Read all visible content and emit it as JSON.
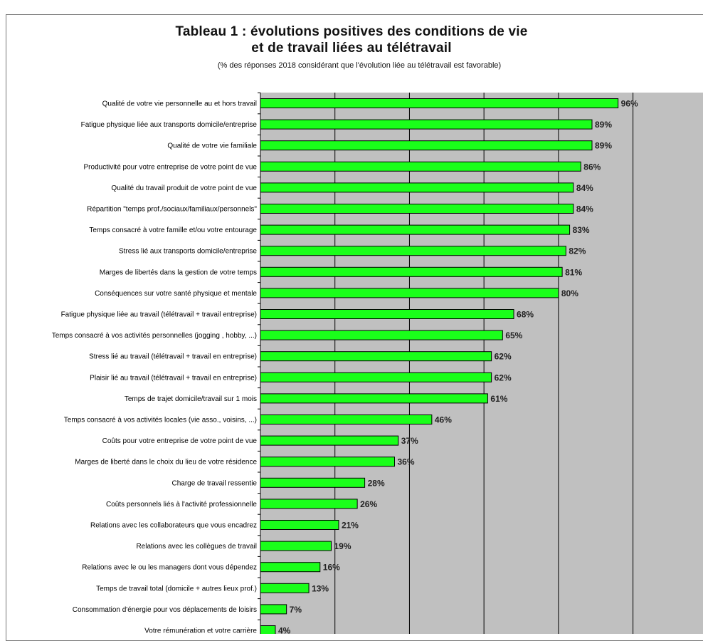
{
  "chart_data": {
    "type": "bar",
    "orientation": "horizontal",
    "title_line1": "Tableau 1 : évolutions positives des conditions de vie",
    "title_line2": "et de travail liées au télétravail",
    "subtitle": "(% des réponses 2018 considérant que l'évolution liée au télétravail est favorable)",
    "xlim": [
      0,
      120
    ],
    "grid": true,
    "bar_color": "#1aff1a",
    "plot_background": "#c0c0c0",
    "categories": [
      "Qualité de votre vie personnelle au et hors travail",
      "Fatigue physique liée aux transports domicile/entreprise",
      "Qualité de votre vie familiale",
      "Productivité pour votre entreprise de votre point de vue",
      "Qualité du travail produit de votre point de vue",
      "Répartition \"temps prof./sociaux/familiaux/personnels\"",
      "Temps consacré à votre famille et/ou votre entourage",
      "Stress lié aux transports domicile/entreprise",
      "Marges de libertés dans la gestion de votre temps",
      "Conséquences sur votre santé physique et mentale",
      "Fatigue physique liée au travail (télétravail + travail entreprise)",
      "Temps consacré à vos activités personnelles (jogging , hobby, ...)",
      "Stress lié au travail (télétravail + travail en entreprise)",
      "Plaisir lié au travail (télétravail + travail en entreprise)",
      "Temps de trajet domicile/travail sur 1 mois",
      "Temps consacré à vos activités locales (vie asso., voisins, ...)",
      "Coûts pour votre entreprise de votre point de vue",
      "Marges de liberté dans le choix du lieu de votre résidence",
      "Charge de travail ressentie",
      "Coûts personnels liés à l'activité professionnelle",
      "Relations avec les collaborateurs que vous encadrez",
      "Relations avec les collègues de travail",
      "Relations avec le ou les managers dont vous dépendez",
      "Temps de travail total (domicile + autres lieux prof.)",
      "Consommation d'énergie pour vos déplacements de loisirs",
      "Votre rémunération et votre carrière"
    ],
    "values": [
      96,
      89,
      89,
      86,
      84,
      84,
      83,
      82,
      81,
      80,
      68,
      65,
      62,
      62,
      61,
      46,
      37,
      36,
      28,
      26,
      21,
      19,
      16,
      13,
      7,
      4
    ],
    "value_labels": [
      "96%",
      "89%",
      "89%",
      "86%",
      "84%",
      "84%",
      "83%",
      "82%",
      "81%",
      "80%",
      "68%",
      "65%",
      "62%",
      "62%",
      "61%",
      "46%",
      "37%",
      "36%",
      "28%",
      "26%",
      "21%",
      "19%",
      "16%",
      "13%",
      "7%",
      "4%"
    ]
  }
}
